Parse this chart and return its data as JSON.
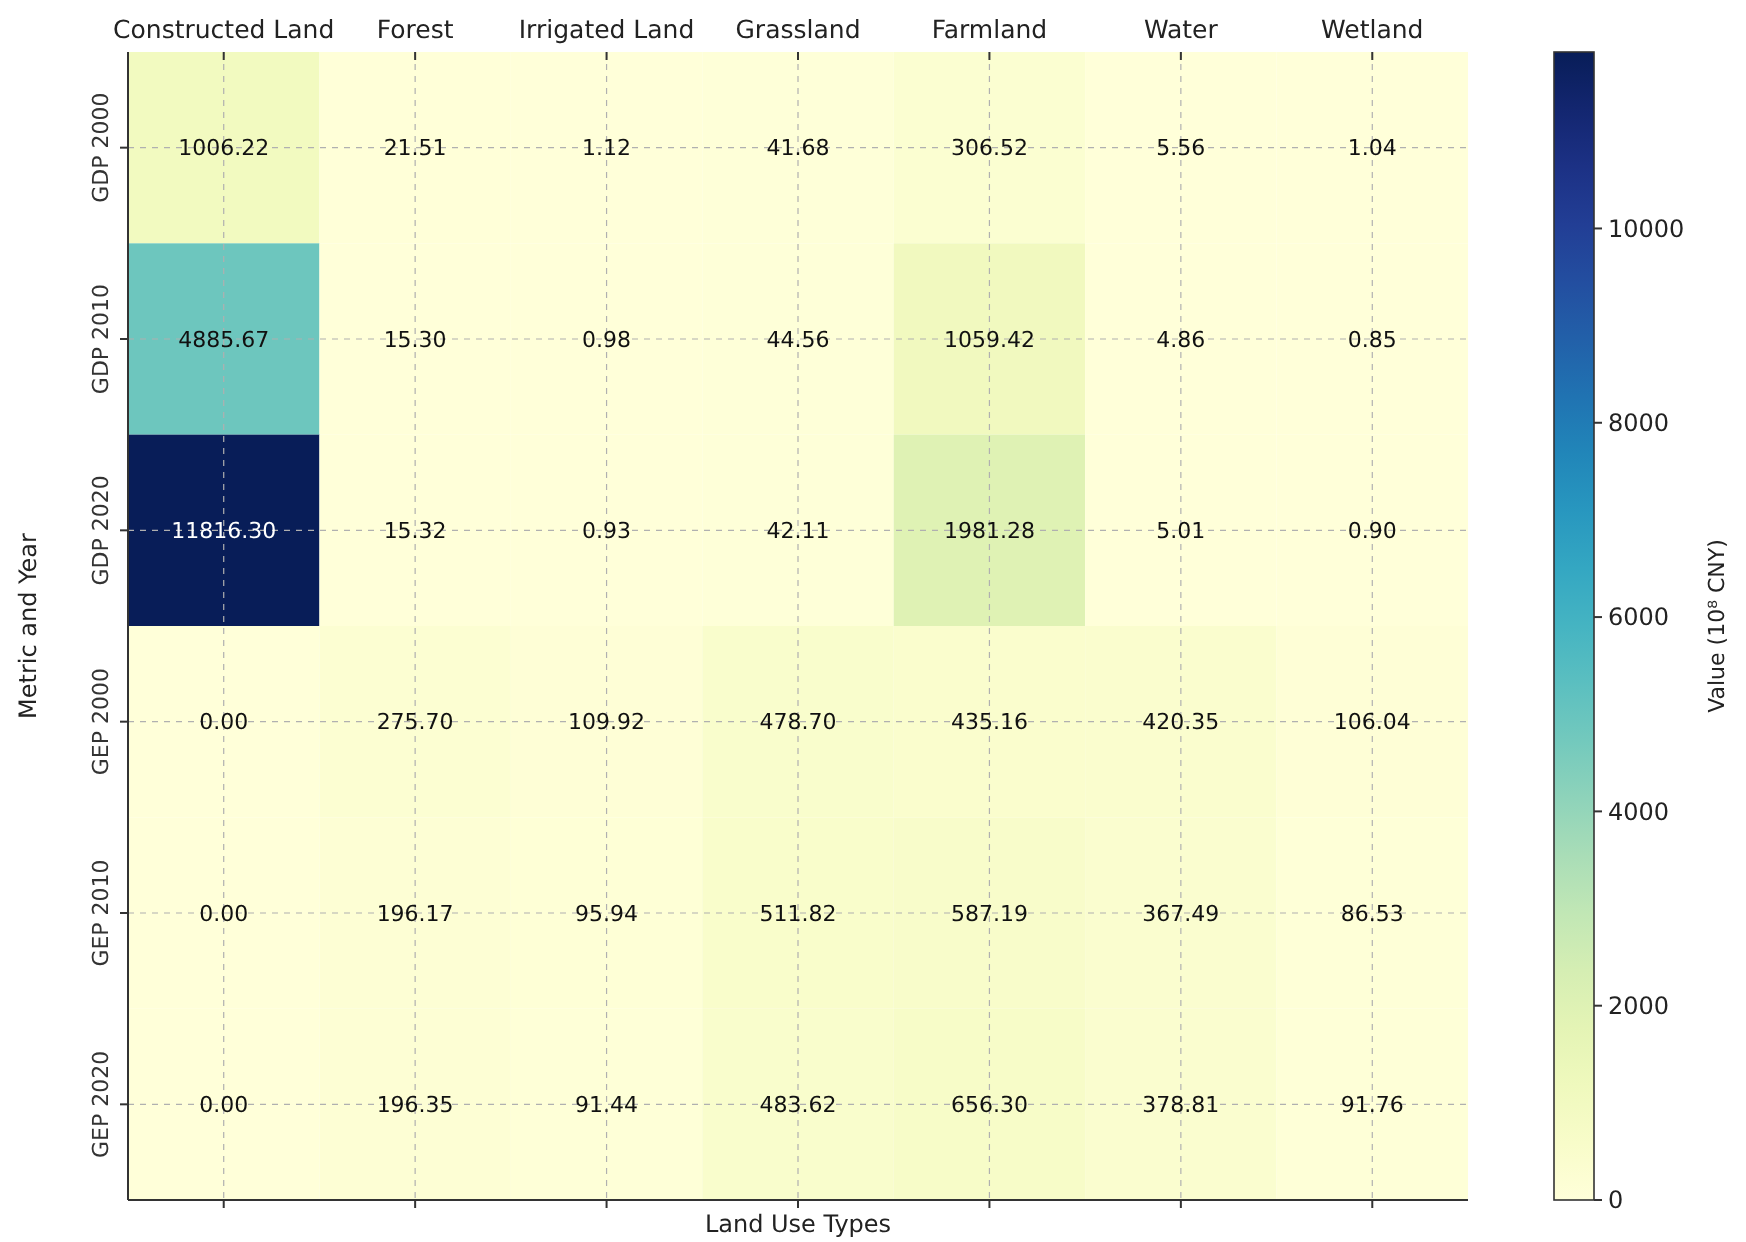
{
  "chart_data": {
    "type": "heatmap",
    "xlabel": "Land Use Types",
    "ylabel": "Metric and Year",
    "clabel": "Value (10⁸ CNY)",
    "categories": [
      "Constructed Land",
      "Forest",
      "Irrigated Land",
      "Grassland",
      "Farmland",
      "Water",
      "Wetland"
    ],
    "y_categories": [
      "GDP 2000",
      "GDP 2010",
      "GDP 2020",
      "GEP 2000",
      "GEP 2010",
      "GEP 2020"
    ],
    "cells": [
      [
        1006.22,
        21.51,
        1.12,
        41.68,
        306.52,
        5.56,
        1.04
      ],
      [
        4885.67,
        15.3,
        0.98,
        44.56,
        1059.42,
        4.86,
        0.85
      ],
      [
        11816.3,
        15.32,
        0.93,
        42.11,
        1981.28,
        5.01,
        0.9
      ],
      [
        0.0,
        275.7,
        109.92,
        478.7,
        435.16,
        420.35,
        106.04
      ],
      [
        0.0,
        196.17,
        95.94,
        511.82,
        587.19,
        367.49,
        86.53
      ],
      [
        0.0,
        196.35,
        91.44,
        483.62,
        656.3,
        378.81,
        91.76
      ]
    ],
    "cell_labels": [
      [
        "1006.22",
        "21.51",
        "1.12",
        "41.68",
        "306.52",
        "5.56",
        "1.04"
      ],
      [
        "4885.67",
        "15.30",
        "0.98",
        "44.56",
        "1059.42",
        "4.86",
        "0.85"
      ],
      [
        "11816.30",
        "15.32",
        "0.93",
        "42.11",
        "1981.28",
        "5.01",
        "0.90"
      ],
      [
        "0.00",
        "275.70",
        "109.92",
        "478.70",
        "435.16",
        "420.35",
        "106.04"
      ],
      [
        "0.00",
        "196.17",
        "95.94",
        "511.82",
        "587.19",
        "367.49",
        "86.53"
      ],
      [
        "0.00",
        "196.35",
        "91.44",
        "483.62",
        "656.30",
        "378.81",
        "91.76"
      ]
    ],
    "clim": [
      0,
      11816.3
    ],
    "cticks": [
      0,
      2000,
      4000,
      6000,
      8000,
      10000
    ],
    "grid": true
  }
}
